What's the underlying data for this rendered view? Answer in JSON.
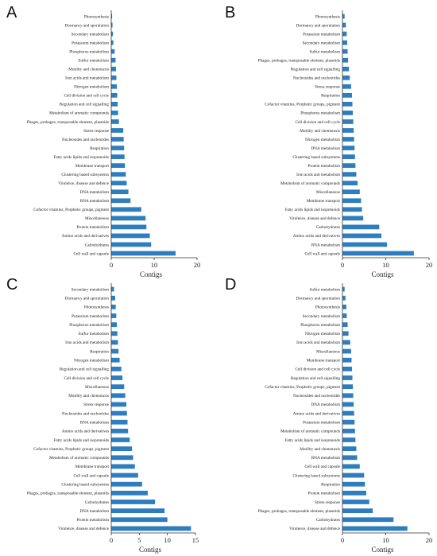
{
  "figure": {
    "bar_color": "#2E7EBF"
  },
  "chart_data": [
    {
      "panel": "A",
      "type": "bar",
      "orientation": "horizontal",
      "xlabel": "Contigs",
      "xlim": [
        0,
        20
      ],
      "xticks": [
        0,
        10,
        20
      ],
      "categories": [
        "Photosynthesis",
        "Dormancy and sporulation",
        "Secondary metabolism",
        "Potassium metabolism",
        "Phosphorus metabolism",
        "Sulfur metabolism",
        "Motility and chemotaxis",
        "Iron acids and metabolism",
        "Nitrogen metabolism",
        "Cell division and cell cycle",
        "Regulation and cell signalling",
        "Metabolism of aromatic compounds",
        "Phages, prohages, transposable element, plasmids",
        "Stress response",
        "Nucleosides and nucleotides",
        "Respiration",
        "Fatty acids lipids and isoprenoids",
        "Membrane transport",
        "Clustering based subsystems",
        "Virulence, disease and defence",
        "DNA metabolism",
        "RNA metabolism",
        "Cofactor vitamins, Porphetic groups, pigment",
        "Miscellaneous",
        "Protein metabolism",
        "Amino acids and derivatives",
        "Carbohydrates",
        "Cell wall and capsule"
      ],
      "values": [
        0.2,
        0.3,
        0.4,
        0.5,
        0.8,
        1.0,
        1.1,
        1.2,
        1.3,
        1.4,
        1.5,
        1.6,
        1.8,
        2.8,
        2.9,
        3.0,
        3.1,
        3.2,
        3.4,
        3.6,
        4.0,
        4.5,
        7.0,
        8.0,
        8.2,
        9.0,
        9.3,
        15.0
      ]
    },
    {
      "panel": "B",
      "type": "bar",
      "orientation": "horizontal",
      "xlabel": "Contigs",
      "xlim": [
        0,
        20
      ],
      "xticks": [
        0,
        10,
        20
      ],
      "categories": [
        "Photosynthesis",
        "Dormancy and sporulation",
        "Potassium metabolism",
        "Secondary metabolism",
        "Sulfur metabolism",
        "Phages, prohages, transposable element, plasmids",
        "Regulation and cell signalling",
        "Nucleosides and nucleotides",
        "Stress response",
        "Respiration",
        "Cofactor vitamins, Porphetic groups, pigment",
        "Phosphorus metabolism",
        "Cell division and cell cycle",
        "Motility and chemotaxis",
        "Nitrogen metabolism",
        "DNA metabolism",
        "Clustering based subsystems",
        "Protein metabolism",
        "Iron acids and metabolism",
        "Metabolism of aromatic compounds",
        "Miscellaneous",
        "Membrane transport",
        "Fatty acids lipids and isoprenoids",
        "Virulence, disease and defence",
        "Carbohydrates",
        "Amino acids and derivatives",
        "RNA metabolism",
        "Cell wall and capsule"
      ],
      "values": [
        0.5,
        0.8,
        1.0,
        1.1,
        1.2,
        1.3,
        1.5,
        1.7,
        2.0,
        2.2,
        2.3,
        2.4,
        2.5,
        2.6,
        2.7,
        2.8,
        2.9,
        3.0,
        3.2,
        3.5,
        4.0,
        4.3,
        4.5,
        4.8,
        8.5,
        9.0,
        10.3,
        16.5
      ]
    },
    {
      "panel": "C",
      "type": "bar",
      "orientation": "horizontal",
      "xlabel": "Contigs",
      "xlim": [
        0,
        15
      ],
      "xticks": [
        0,
        5,
        10,
        15
      ],
      "categories": [
        "Secondary metabolism",
        "Dormancy and sporulation",
        "Photosynthesis",
        "Potassium metabolism",
        "Phosphorus metabolism",
        "Sulfur metabolism",
        "Iron acids and metabolism",
        "Respiration",
        "Nitrogen metabolism",
        "Regulation and cell signalling",
        "Cell division and cell cycle",
        "Miscellaneous",
        "Motility and chemotaxis",
        "Stress response",
        "Nucleosides and nucleotides",
        "RNA metabolism",
        "Amino acids and derivatives",
        "Fatty acids lipids and isoprenoids",
        "Cofactor vitamins, Porphetic groups, pigment",
        "Metabolism of aromatic compounds",
        "Membrane transport",
        "Cell wall and capsule",
        "Clustering based subsystems",
        "Phages, prohages, transposable element, plasmids",
        "Carbohydrates",
        "DNA metabolism",
        "Protein metabolism",
        "Virulence, disease and defence"
      ],
      "values": [
        0.5,
        0.7,
        0.8,
        0.9,
        1.0,
        1.1,
        1.2,
        1.3,
        1.5,
        1.8,
        2.0,
        2.3,
        2.5,
        2.7,
        2.8,
        2.9,
        3.0,
        3.3,
        3.7,
        3.9,
        4.2,
        4.8,
        5.5,
        6.5,
        7.8,
        9.5,
        10.0,
        14.2
      ]
    },
    {
      "panel": "D",
      "type": "bar",
      "orientation": "horizontal",
      "xlabel": "Contigs",
      "xlim": [
        0,
        20
      ],
      "xticks": [
        0,
        10,
        20
      ],
      "categories": [
        "Sulfur metabolism",
        "Dormancy and sporulation",
        "Photosynthesis",
        "Secondary metabolism",
        "Phosphorus metabolism",
        "Nitrogen metabolism",
        "Iron acids and metabolism",
        "Miscellaneous",
        "Membrane transport",
        "Cell division and cell cycle",
        "Regulation and cell signalling",
        "Cofactor vitamins, Porphetic groups, pigment",
        "Nucleosides and nucleotides",
        "DNA metabolism",
        "Amino acids and derivatives",
        "Potassium metabolism",
        "Metabolism of aromatic compounds",
        "Fatty acids lipids and isoprenoids",
        "Motility and chemotaxis",
        "RNA metabolism",
        "Cell wall and capsule",
        "Clustering based subsystems",
        "Respiration",
        "Protein metabolism",
        "Stress response",
        "Phages, prohages, transposable element, plasmids",
        "Carbohydrates",
        "Virulence, disease and defence"
      ],
      "values": [
        0.5,
        0.7,
        0.9,
        1.0,
        1.2,
        1.4,
        1.8,
        2.0,
        2.1,
        2.2,
        2.3,
        2.4,
        2.5,
        2.6,
        2.7,
        2.8,
        2.9,
        3.0,
        3.2,
        3.4,
        4.0,
        5.0,
        5.2,
        5.5,
        6.2,
        7.0,
        11.8,
        15.0
      ]
    }
  ]
}
